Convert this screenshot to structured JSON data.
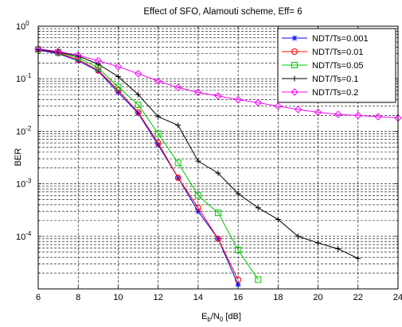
{
  "colors": {
    "background": "#ffffff",
    "axes": "#000000",
    "grid": "#000000"
  },
  "chart_data": {
    "type": "line",
    "title": "Effect of SFO, Alamouti scheme, Eff= 6",
    "xlabel": "E_b/N_0 [dB]",
    "xlabel_parts": {
      "main": "E",
      "sub1": "b",
      "mid": "/N",
      "sub2": "0",
      "tail": " [dB]"
    },
    "ylabel": "BER",
    "x_scale": "linear",
    "y_scale": "log",
    "xlim": [
      6,
      24
    ],
    "ylim": [
      1e-05,
      1
    ],
    "x_ticks": [
      6,
      8,
      10,
      12,
      14,
      16,
      18,
      20,
      22,
      24
    ],
    "x_tick_labels": [
      "6",
      "8",
      "10",
      "12",
      "14",
      "16",
      "18",
      "20",
      "22",
      "24"
    ],
    "y_ticks": [
      {
        "value": 1,
        "base": "10",
        "exp": "0"
      },
      {
        "value": 0.1,
        "base": "10",
        "exp": "-1"
      },
      {
        "value": 0.01,
        "base": "10",
        "exp": "-2"
      },
      {
        "value": 0.001,
        "base": "10",
        "exp": "-3"
      },
      {
        "value": 0.0001,
        "base": "10",
        "exp": "-4"
      }
    ],
    "grid": true,
    "grid_style": "dashed",
    "legend_position": "top-right",
    "series": [
      {
        "name": "NDT/Ts=0.001",
        "color": "#0000ff",
        "marker": "star",
        "x": [
          6,
          7,
          8,
          9,
          10,
          11,
          12,
          13,
          14,
          15,
          16
        ],
        "y": [
          0.35,
          0.3,
          0.22,
          0.14,
          0.055,
          0.022,
          0.0055,
          0.0013,
          0.0003,
          9e-05,
          1.2e-05
        ]
      },
      {
        "name": "NDT/Ts=0.01",
        "color": "#ff0000",
        "marker": "circle",
        "x": [
          6,
          7,
          8,
          9,
          10,
          11,
          12,
          13,
          14,
          15,
          16
        ],
        "y": [
          0.36,
          0.31,
          0.23,
          0.145,
          0.06,
          0.023,
          0.006,
          0.0013,
          0.00035,
          9e-05,
          1.5e-05
        ]
      },
      {
        "name": "NDT/Ts=0.05",
        "color": "#00cc00",
        "marker": "square",
        "x": [
          6,
          7,
          8,
          9,
          10,
          11,
          12,
          13,
          14,
          15,
          16,
          17
        ],
        "y": [
          0.36,
          0.32,
          0.25,
          0.16,
          0.07,
          0.032,
          0.009,
          0.0025,
          0.0006,
          0.00028,
          5.5e-05,
          1.5e-05
        ]
      },
      {
        "name": "NDT/Ts=0.1",
        "color": "#000000",
        "marker": "plus",
        "x": [
          6,
          7,
          8,
          9,
          10,
          11,
          12,
          13,
          14,
          15,
          16,
          17,
          18,
          19,
          20,
          21,
          22
        ],
        "y": [
          0.36,
          0.32,
          0.27,
          0.19,
          0.11,
          0.05,
          0.019,
          0.013,
          0.0027,
          0.0016,
          0.00065,
          0.00035,
          0.00021,
          0.0001,
          7.5e-05,
          5.8e-05,
          3.8e-05
        ]
      },
      {
        "name": "NDT/Ts=0.2",
        "color": "#ff00ff",
        "marker": "diamond",
        "x": [
          6,
          7,
          8,
          9,
          10,
          11,
          12,
          13,
          14,
          15,
          16,
          17,
          18,
          19,
          20,
          21,
          22,
          23,
          24
        ],
        "y": [
          0.37,
          0.33,
          0.28,
          0.22,
          0.17,
          0.125,
          0.09,
          0.068,
          0.055,
          0.047,
          0.04,
          0.035,
          0.03,
          0.026,
          0.023,
          0.021,
          0.02,
          0.019,
          0.018
        ]
      }
    ]
  }
}
